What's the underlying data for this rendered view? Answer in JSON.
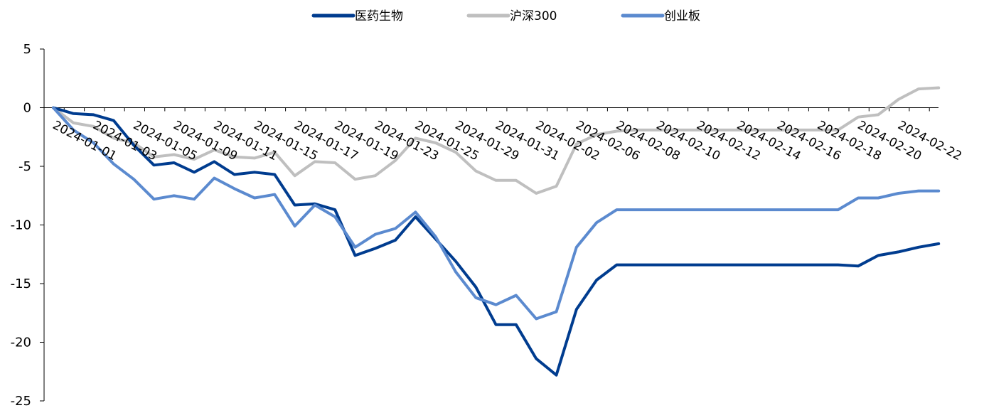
{
  "chart_data": {
    "type": "line",
    "title": "",
    "xlabel": "",
    "ylabel": "",
    "ylim": [
      -25,
      5
    ],
    "yticks": [
      5,
      0,
      -5,
      -10,
      -15,
      -20,
      -25
    ],
    "grid": false,
    "legend_position": "top",
    "x_tick_labels": [
      "2024-01-01",
      "2024-01-03",
      "2024-01-05",
      "2024-01-09",
      "2024-01-11",
      "2024-01-15",
      "2024-01-17",
      "2024-01-19",
      "2024-01-23",
      "2024-01-25",
      "2024-01-29",
      "2024-01-31",
      "2024-02-02",
      "2024-02-06",
      "2024-02-08",
      "2024-02-10",
      "2024-02-12",
      "2024-02-14",
      "2024-02-16",
      "2024-02-18",
      "2024-02-20",
      "2024-02-22"
    ],
    "series": [
      {
        "name": "医药生物",
        "color": "#003C8F",
        "values": [
          0,
          -0.5,
          -0.6,
          -1.1,
          -3.2,
          -4.9,
          -4.7,
          -5.5,
          -4.6,
          -5.7,
          -5.5,
          -5.7,
          -8.3,
          -8.2,
          -8.7,
          -12.6,
          -12.0,
          -11.3,
          -9.3,
          -11.2,
          -13.1,
          -15.3,
          -18.5,
          -18.5,
          -21.4,
          -22.8,
          -17.2,
          -14.7,
          -13.4,
          -13.4,
          -13.4,
          -13.4,
          -13.4,
          -13.4,
          -13.4,
          -13.4,
          -13.4,
          -13.4,
          -13.4,
          -13.4,
          -13.5,
          -12.6,
          -12.3,
          -11.9,
          -11.6
        ]
      },
      {
        "name": "沪深300",
        "color": "#BFBFBF",
        "values": [
          0,
          -1.3,
          -1.6,
          -2.6,
          -3.0,
          -4.2,
          -4.0,
          -4.4,
          -3.6,
          -4.2,
          -4.3,
          -3.8,
          -5.8,
          -4.6,
          -4.7,
          -6.1,
          -5.8,
          -4.5,
          -2.6,
          -3.0,
          -3.8,
          -5.4,
          -6.2,
          -6.2,
          -7.3,
          -6.7,
          -3.1,
          -2.3,
          -2.0,
          -1.9,
          -1.9,
          -1.9,
          -1.9,
          -1.9,
          -1.9,
          -1.9,
          -1.9,
          -1.9,
          -1.9,
          -1.9,
          -0.8,
          -0.6,
          0.7,
          1.6,
          1.7
        ]
      },
      {
        "name": "创业板",
        "color": "#5B8ACF",
        "values": [
          0,
          -1.9,
          -3.0,
          -4.8,
          -6.1,
          -7.8,
          -7.5,
          -7.8,
          -6.0,
          -6.9,
          -7.7,
          -7.4,
          -10.1,
          -8.3,
          -9.3,
          -11.9,
          -10.8,
          -10.3,
          -8.9,
          -11.0,
          -14.0,
          -16.2,
          -16.8,
          -16.0,
          -18.0,
          -17.4,
          -11.9,
          -9.8,
          -8.7,
          -8.7,
          -8.7,
          -8.7,
          -8.7,
          -8.7,
          -8.7,
          -8.7,
          -8.7,
          -8.7,
          -8.7,
          -8.7,
          -7.7,
          -7.7,
          -7.3,
          -7.1,
          -7.1
        ]
      }
    ]
  }
}
